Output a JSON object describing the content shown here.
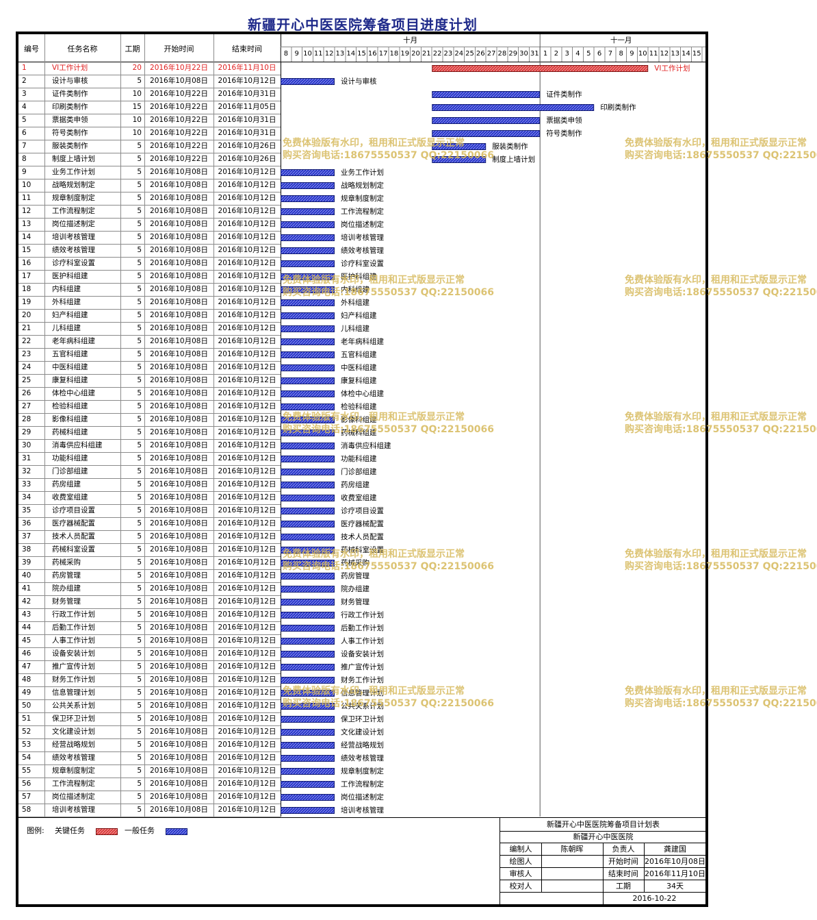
{
  "title": "新疆开心中医医院筹备项目进度计划",
  "headers": {
    "id": "编号",
    "name": "任务名称",
    "days": "工期",
    "start": "开始时间",
    "end": "结束时间"
  },
  "months": [
    "十月",
    "十一月"
  ],
  "day_ticks": [
    "8",
    "9",
    "10",
    "11",
    "12",
    "13",
    "14",
    "15",
    "16",
    "17",
    "18",
    "19",
    "20",
    "21",
    "22",
    "23",
    "24",
    "25",
    "26",
    "27",
    "28",
    "29",
    "30",
    "31",
    "1",
    "2",
    "3",
    "4",
    "5",
    "6",
    "7",
    "8",
    "9",
    "10",
    "11",
    "12",
    "13",
    "14",
    "15"
  ],
  "colors": {
    "critical": "#d93a3a",
    "normal": "#2633c8",
    "critical_text": "#e02020"
  },
  "chart_data": {
    "type": "gantt",
    "x_range": [
      "2016-10-08",
      "2016-11-15"
    ],
    "tasks": [
      {
        "id": "1",
        "name": "VI工作计划",
        "days": "20",
        "start": "2016年10月22日",
        "end": "2016年11月10日",
        "kind": "critical"
      },
      {
        "id": "2",
        "name": "设计与审核",
        "days": "5",
        "start": "2016年10月08日",
        "end": "2016年10月12日",
        "kind": "normal"
      },
      {
        "id": "3",
        "name": "证件类制作",
        "days": "10",
        "start": "2016年10月22日",
        "end": "2016年10月31日",
        "kind": "normal"
      },
      {
        "id": "4",
        "name": "印刷类制作",
        "days": "15",
        "start": "2016年10月22日",
        "end": "2016年11月05日",
        "kind": "normal"
      },
      {
        "id": "5",
        "name": "票据类申领",
        "days": "10",
        "start": "2016年10月22日",
        "end": "2016年10月31日",
        "kind": "normal"
      },
      {
        "id": "6",
        "name": "符号类制作",
        "days": "10",
        "start": "2016年10月22日",
        "end": "2016年10月31日",
        "kind": "normal"
      },
      {
        "id": "7",
        "name": "服装类制作",
        "days": "5",
        "start": "2016年10月22日",
        "end": "2016年10月26日",
        "kind": "normal"
      },
      {
        "id": "8",
        "name": "制度上墙计划",
        "days": "5",
        "start": "2016年10月22日",
        "end": "2016年10月26日",
        "kind": "normal"
      },
      {
        "id": "9",
        "name": "业务工作计划",
        "days": "5",
        "start": "2016年10月08日",
        "end": "2016年10月12日",
        "kind": "normal"
      },
      {
        "id": "10",
        "name": "战略规划制定",
        "days": "5",
        "start": "2016年10月08日",
        "end": "2016年10月12日",
        "kind": "normal"
      },
      {
        "id": "11",
        "name": "规章制度制定",
        "days": "5",
        "start": "2016年10月08日",
        "end": "2016年10月12日",
        "kind": "normal"
      },
      {
        "id": "12",
        "name": "工作流程制定",
        "days": "5",
        "start": "2016年10月08日",
        "end": "2016年10月12日",
        "kind": "normal"
      },
      {
        "id": "13",
        "name": "岗位描述制定",
        "days": "5",
        "start": "2016年10月08日",
        "end": "2016年10月12日",
        "kind": "normal"
      },
      {
        "id": "14",
        "name": "培训考核管理",
        "days": "5",
        "start": "2016年10月08日",
        "end": "2016年10月12日",
        "kind": "normal"
      },
      {
        "id": "15",
        "name": "绩效考核管理",
        "days": "5",
        "start": "2016年10月08日",
        "end": "2016年10月12日",
        "kind": "normal"
      },
      {
        "id": "16",
        "name": "诊疗科室设置",
        "days": "5",
        "start": "2016年10月08日",
        "end": "2016年10月12日",
        "kind": "normal"
      },
      {
        "id": "17",
        "name": "医护科组建",
        "days": "5",
        "start": "2016年10月08日",
        "end": "2016年10月12日",
        "kind": "normal"
      },
      {
        "id": "18",
        "name": "内科组建",
        "days": "5",
        "start": "2016年10月08日",
        "end": "2016年10月12日",
        "kind": "normal"
      },
      {
        "id": "19",
        "name": "外科组建",
        "days": "5",
        "start": "2016年10月08日",
        "end": "2016年10月12日",
        "kind": "normal"
      },
      {
        "id": "20",
        "name": "妇产科组建",
        "days": "5",
        "start": "2016年10月08日",
        "end": "2016年10月12日",
        "kind": "normal"
      },
      {
        "id": "21",
        "name": "儿科组建",
        "days": "5",
        "start": "2016年10月08日",
        "end": "2016年10月12日",
        "kind": "normal"
      },
      {
        "id": "22",
        "name": "老年病科组建",
        "days": "5",
        "start": "2016年10月08日",
        "end": "2016年10月12日",
        "kind": "normal"
      },
      {
        "id": "23",
        "name": "五官科组建",
        "days": "5",
        "start": "2016年10月08日",
        "end": "2016年10月12日",
        "kind": "normal"
      },
      {
        "id": "24",
        "name": "中医科组建",
        "days": "5",
        "start": "2016年10月08日",
        "end": "2016年10月12日",
        "kind": "normal"
      },
      {
        "id": "25",
        "name": "康复科组建",
        "days": "5",
        "start": "2016年10月08日",
        "end": "2016年10月12日",
        "kind": "normal"
      },
      {
        "id": "26",
        "name": "体检中心组建",
        "days": "5",
        "start": "2016年10月08日",
        "end": "2016年10月12日",
        "kind": "normal"
      },
      {
        "id": "27",
        "name": "检验科组建",
        "days": "5",
        "start": "2016年10月08日",
        "end": "2016年10月12日",
        "kind": "normal"
      },
      {
        "id": "28",
        "name": "影像科组建",
        "days": "5",
        "start": "2016年10月08日",
        "end": "2016年10月12日",
        "kind": "normal"
      },
      {
        "id": "29",
        "name": "药械科组建",
        "days": "5",
        "start": "2016年10月08日",
        "end": "2016年10月12日",
        "kind": "normal"
      },
      {
        "id": "30",
        "name": "消毒供应科组建",
        "days": "5",
        "start": "2016年10月08日",
        "end": "2016年10月12日",
        "kind": "normal"
      },
      {
        "id": "31",
        "name": "功能科组建",
        "days": "5",
        "start": "2016年10月08日",
        "end": "2016年10月12日",
        "kind": "normal"
      },
      {
        "id": "32",
        "name": "门诊部组建",
        "days": "5",
        "start": "2016年10月08日",
        "end": "2016年10月12日",
        "kind": "normal"
      },
      {
        "id": "33",
        "name": "药房组建",
        "days": "5",
        "start": "2016年10月08日",
        "end": "2016年10月12日",
        "kind": "normal"
      },
      {
        "id": "34",
        "name": "收费室组建",
        "days": "5",
        "start": "2016年10月08日",
        "end": "2016年10月12日",
        "kind": "normal"
      },
      {
        "id": "35",
        "name": "诊疗项目设置",
        "days": "5",
        "start": "2016年10月08日",
        "end": "2016年10月12日",
        "kind": "normal"
      },
      {
        "id": "36",
        "name": "医疗器械配置",
        "days": "5",
        "start": "2016年10月08日",
        "end": "2016年10月12日",
        "kind": "normal"
      },
      {
        "id": "37",
        "name": "技术人员配置",
        "days": "5",
        "start": "2016年10月08日",
        "end": "2016年10月12日",
        "kind": "normal"
      },
      {
        "id": "38",
        "name": "药械科室设置",
        "days": "5",
        "start": "2016年10月08日",
        "end": "2016年10月12日",
        "kind": "normal"
      },
      {
        "id": "39",
        "name": "药械采购",
        "days": "5",
        "start": "2016年10月08日",
        "end": "2016年10月12日",
        "kind": "normal"
      },
      {
        "id": "40",
        "name": "药房管理",
        "days": "5",
        "start": "2016年10月08日",
        "end": "2016年10月12日",
        "kind": "normal"
      },
      {
        "id": "41",
        "name": "院办组建",
        "days": "5",
        "start": "2016年10月08日",
        "end": "2016年10月12日",
        "kind": "normal"
      },
      {
        "id": "42",
        "name": "财务管理",
        "days": "5",
        "start": "2016年10月08日",
        "end": "2016年10月12日",
        "kind": "normal"
      },
      {
        "id": "43",
        "name": "行政工作计划",
        "days": "5",
        "start": "2016年10月08日",
        "end": "2016年10月12日",
        "kind": "normal"
      },
      {
        "id": "44",
        "name": "后勤工作计划",
        "days": "5",
        "start": "2016年10月08日",
        "end": "2016年10月12日",
        "kind": "normal"
      },
      {
        "id": "45",
        "name": "人事工作计划",
        "days": "5",
        "start": "2016年10月08日",
        "end": "2016年10月12日",
        "kind": "normal"
      },
      {
        "id": "46",
        "name": "设备安装计划",
        "days": "5",
        "start": "2016年10月08日",
        "end": "2016年10月12日",
        "kind": "normal"
      },
      {
        "id": "47",
        "name": "推广宣传计划",
        "days": "5",
        "start": "2016年10月08日",
        "end": "2016年10月12日",
        "kind": "normal"
      },
      {
        "id": "48",
        "name": "财务工作计划",
        "days": "5",
        "start": "2016年10月08日",
        "end": "2016年10月12日",
        "kind": "normal"
      },
      {
        "id": "49",
        "name": "信息管理计划",
        "days": "5",
        "start": "2016年10月08日",
        "end": "2016年10月12日",
        "kind": "normal"
      },
      {
        "id": "50",
        "name": "公共关系计划",
        "days": "5",
        "start": "2016年10月08日",
        "end": "2016年10月12日",
        "kind": "normal"
      },
      {
        "id": "51",
        "name": "保卫环卫计划",
        "days": "5",
        "start": "2016年10月08日",
        "end": "2016年10月12日",
        "kind": "normal"
      },
      {
        "id": "52",
        "name": "文化建设计划",
        "days": "5",
        "start": "2016年10月08日",
        "end": "2016年10月12日",
        "kind": "normal"
      },
      {
        "id": "53",
        "name": "经营战略规划",
        "days": "5",
        "start": "2016年10月08日",
        "end": "2016年10月12日",
        "kind": "normal"
      },
      {
        "id": "54",
        "name": "绩效考核管理",
        "days": "5",
        "start": "2016年10月08日",
        "end": "2016年10月12日",
        "kind": "normal"
      },
      {
        "id": "55",
        "name": "规章制度制定",
        "days": "5",
        "start": "2016年10月08日",
        "end": "2016年10月12日",
        "kind": "normal"
      },
      {
        "id": "56",
        "name": "工作流程制定",
        "days": "5",
        "start": "2016年10月08日",
        "end": "2016年10月12日",
        "kind": "normal"
      },
      {
        "id": "57",
        "name": "岗位描述制定",
        "days": "5",
        "start": "2016年10月08日",
        "end": "2016年10月12日",
        "kind": "normal"
      },
      {
        "id": "58",
        "name": "培训考核管理",
        "days": "5",
        "start": "2016年10月08日",
        "end": "2016年10月12日",
        "kind": "normal"
      }
    ]
  },
  "watermark": {
    "line1": "免费体验版有水印，租用和正式版显示正常",
    "line2": "购买咨询电话:18675550537 QQ:22150066"
  },
  "legend": {
    "label": "图例:",
    "critical": "关键任务",
    "normal": "一般任务"
  },
  "info": {
    "table_title": "新疆开心中医医院筹备项目计划表",
    "org": "新疆开心中医医院",
    "editor_label": "编制人",
    "editor": "陈朝晖",
    "owner_label": "负责人",
    "owner": "龚建国",
    "drawer_label": "绘图人",
    "start_label": "开始时间",
    "start": "2016年10月08日",
    "reviewer_label": "审核人",
    "end_label": "结束时间",
    "end": "2016年11月10日",
    "checker_label": "校对人",
    "duration_label": "工期",
    "duration": "34天",
    "date": "2016-10-22"
  }
}
